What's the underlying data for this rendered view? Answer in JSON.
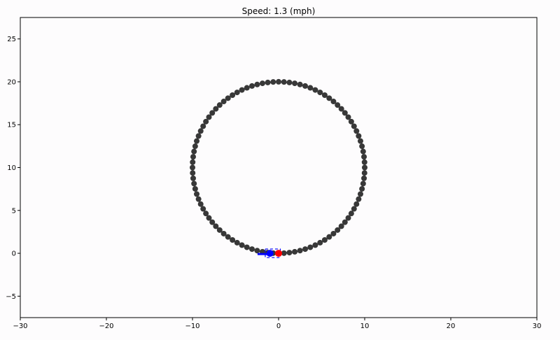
{
  "chart_data": {
    "type": "scatter",
    "title": "Speed: 1.3 (mph)",
    "xlabel": "",
    "ylabel": "",
    "xlim": [
      -30,
      30
    ],
    "ylim": [
      -7.5,
      27.5
    ],
    "xticks": [
      -30,
      -20,
      -10,
      0,
      10,
      20,
      30
    ],
    "yticks": [
      -5,
      0,
      5,
      10,
      15,
      20,
      25
    ],
    "grid": false,
    "series": [
      {
        "role": "path",
        "shape": "circle",
        "center": [
          0,
          10
        ],
        "radius": 10,
        "count": 100,
        "color": "#222222"
      },
      {
        "role": "vehicle-body",
        "color": "#0000ff",
        "box": {
          "x": [
            -2.2,
            0.2
          ],
          "y": [
            -0.5,
            0.5
          ]
        },
        "center_point": [
          -1.0,
          0.0
        ]
      },
      {
        "role": "vehicle-front",
        "color": "#ff0000",
        "point": [
          0.0,
          0.0
        ]
      }
    ]
  }
}
